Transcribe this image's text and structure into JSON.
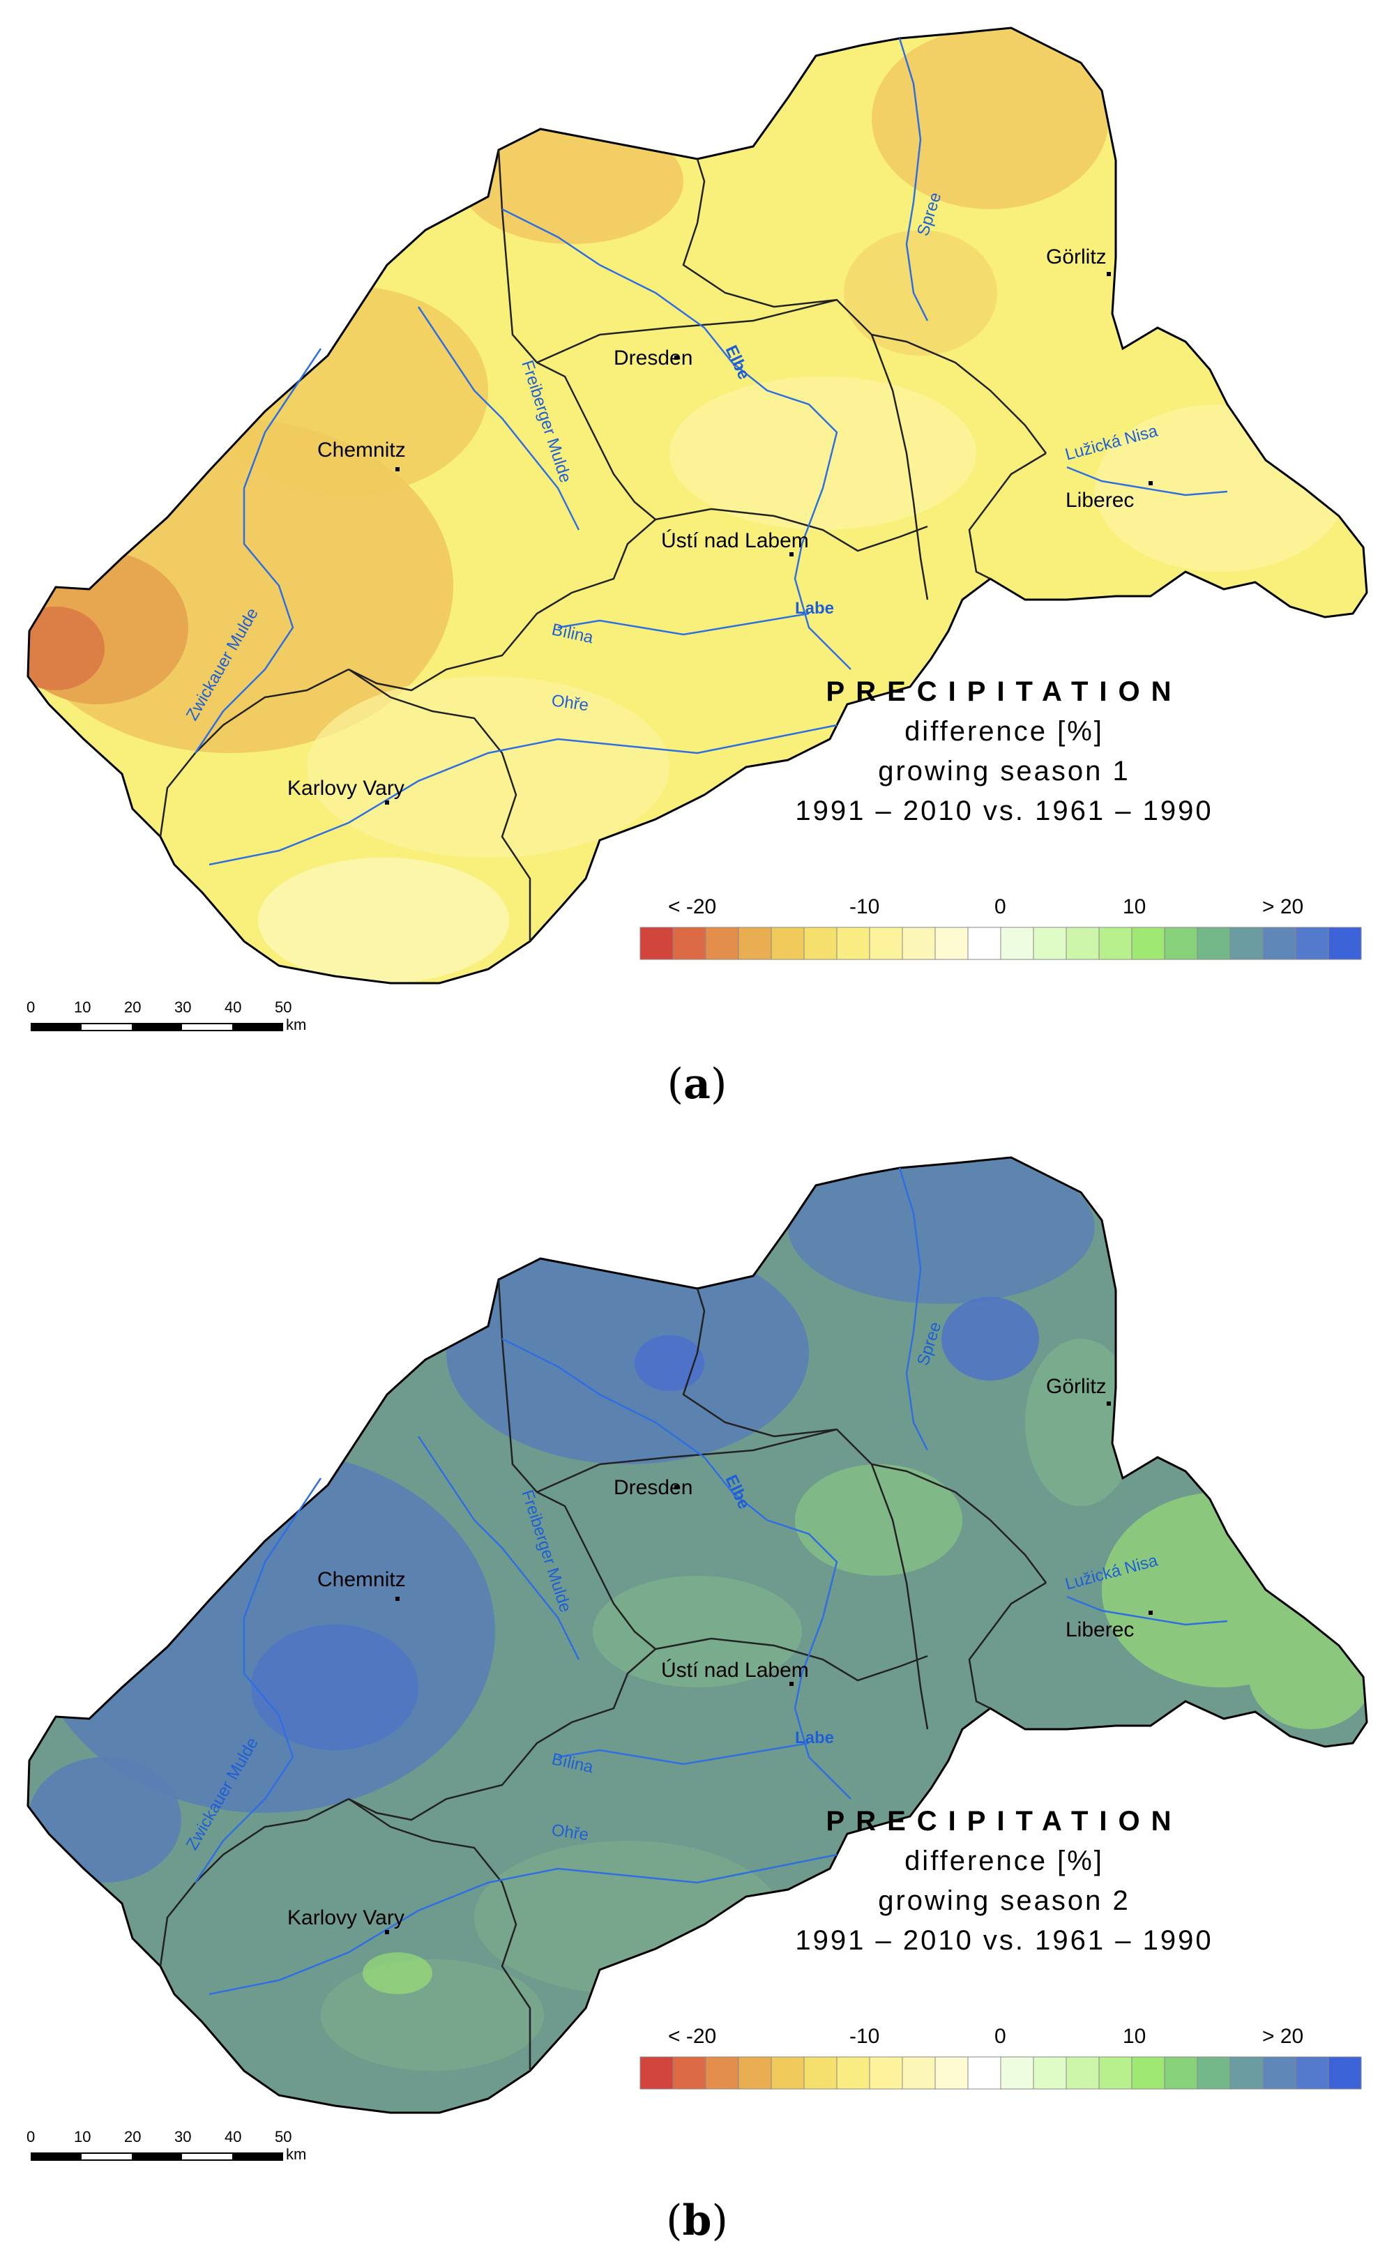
{
  "panels": [
    {
      "label": "a",
      "legend": {
        "title": "PRECIPITATION",
        "line1": "difference [%]",
        "line2": "growing season 1",
        "line3": "1991 – 2010 vs. 1961 – 1990"
      }
    },
    {
      "label": "b",
      "legend": {
        "title": "PRECIPITATION",
        "line1": "difference [%]",
        "line2": "growing season 2",
        "line3": "1991 – 2010 vs. 1961 – 1990"
      }
    }
  ],
  "colorbar": {
    "tick_labels": [
      "< -20",
      "-10",
      "0",
      "10",
      "> 20"
    ],
    "colors": [
      "#d2453d",
      "#dc6b45",
      "#e38f4b",
      "#e9ad52",
      "#f0cb5c",
      "#f5e06d",
      "#f9ec82",
      "#fcf39c",
      "#fdf7b7",
      "#fefad2",
      "#ffffff",
      "#eefce0",
      "#dffbc6",
      "#cdf6ab",
      "#b7f08c",
      "#9ee873",
      "#86d17a",
      "#74b789",
      "#6a9ca2",
      "#5f87b7",
      "#537acb",
      "#3d63d9"
    ]
  },
  "scale_bar": {
    "ticks": [
      "0",
      "10",
      "20",
      "30",
      "40",
      "50"
    ],
    "unit": "km"
  },
  "cities": [
    "Görlitz",
    "Dresden",
    "Chemnitz",
    "Liberec",
    "Ústí nad Labem",
    "Karlovy Vary"
  ],
  "rivers": [
    "Spree",
    "Elbe",
    "Freiberger Mulde",
    "Lužická Nisa",
    "Bílina",
    "Labe",
    "Zwickauer Mulde",
    "Ohře"
  ],
  "fill_colors": {
    "panel_a": {
      "base": "#f9f07c",
      "warm": "#f0c65e",
      "warmer": "#e7a650",
      "hot": "#dc7f47",
      "light": "#fbf5a8"
    },
    "panel_b": {
      "base": "#6f9b8f",
      "blue": "#5a80b4",
      "bluer": "#4d72c8",
      "green": "#8cc77e",
      "lime": "#9ee873"
    }
  }
}
